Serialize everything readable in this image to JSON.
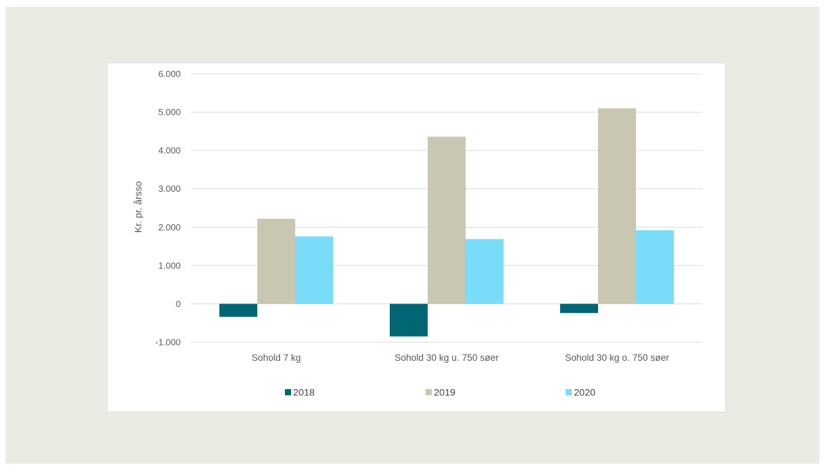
{
  "chart_data": {
    "type": "bar",
    "title": "",
    "xlabel": "",
    "ylabel": "Kr. pr. årsso",
    "categories": [
      "Sohold 7 kg",
      "Sohold 30 kg u. 750 søer",
      "Sohold 30 kg o. 750 søer"
    ],
    "series": [
      {
        "name": "2018",
        "color": "#006673",
        "values": [
          -340,
          -850,
          -240
        ]
      },
      {
        "name": "2019",
        "color": "#c9c7b1",
        "values": [
          2220,
          4360,
          5100
        ]
      },
      {
        "name": "2020",
        "color": "#79dcf8",
        "values": [
          1760,
          1690,
          1920
        ]
      }
    ],
    "ylim": [
      -1000,
      6000
    ],
    "yticks": [
      6000,
      5000,
      4000,
      3000,
      2000,
      1000,
      0,
      -1000
    ],
    "ytick_labels": [
      "6.000",
      "5.000",
      "4.000",
      "3.000",
      "2.000",
      "1.000",
      "0",
      "-1.000"
    ],
    "grid": true,
    "legend_position": "bottom"
  }
}
